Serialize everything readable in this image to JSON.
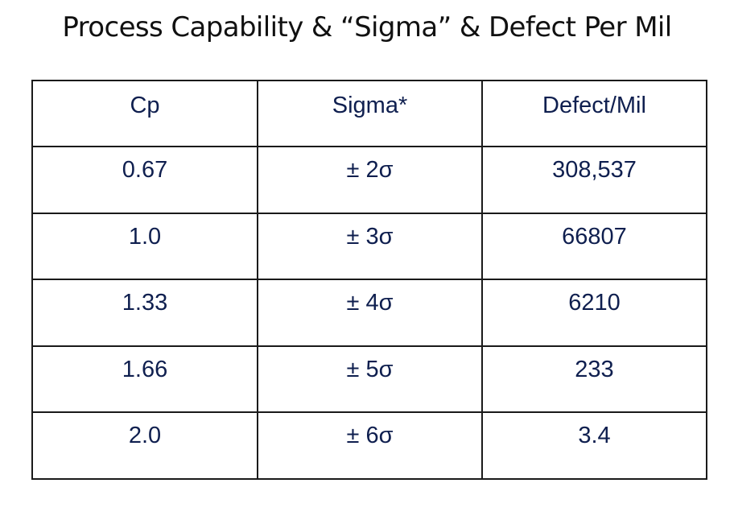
{
  "title": "Process Capability & “Sigma” & Defect Per Mil",
  "table": {
    "headers": [
      "Cp",
      "Sigma*",
      "Defect/Mil"
    ],
    "rows": [
      {
        "cp": "0.67",
        "sigma": "± 2σ",
        "defects": "308,537"
      },
      {
        "cp": "1.0",
        "sigma": "± 3σ",
        "defects": "66807"
      },
      {
        "cp": "1.33",
        "sigma": "± 4σ",
        "defects": "6210"
      },
      {
        "cp": "1.66",
        "sigma": "± 5σ",
        "defects": "233"
      },
      {
        "cp": "2.0",
        "sigma": "± 6σ",
        "defects": "3.4"
      }
    ]
  },
  "colors": {
    "cell_text": "#0f1f4f",
    "emphasis_text": "#000000",
    "border": "#1a1a1a",
    "title_text": "#111111"
  }
}
